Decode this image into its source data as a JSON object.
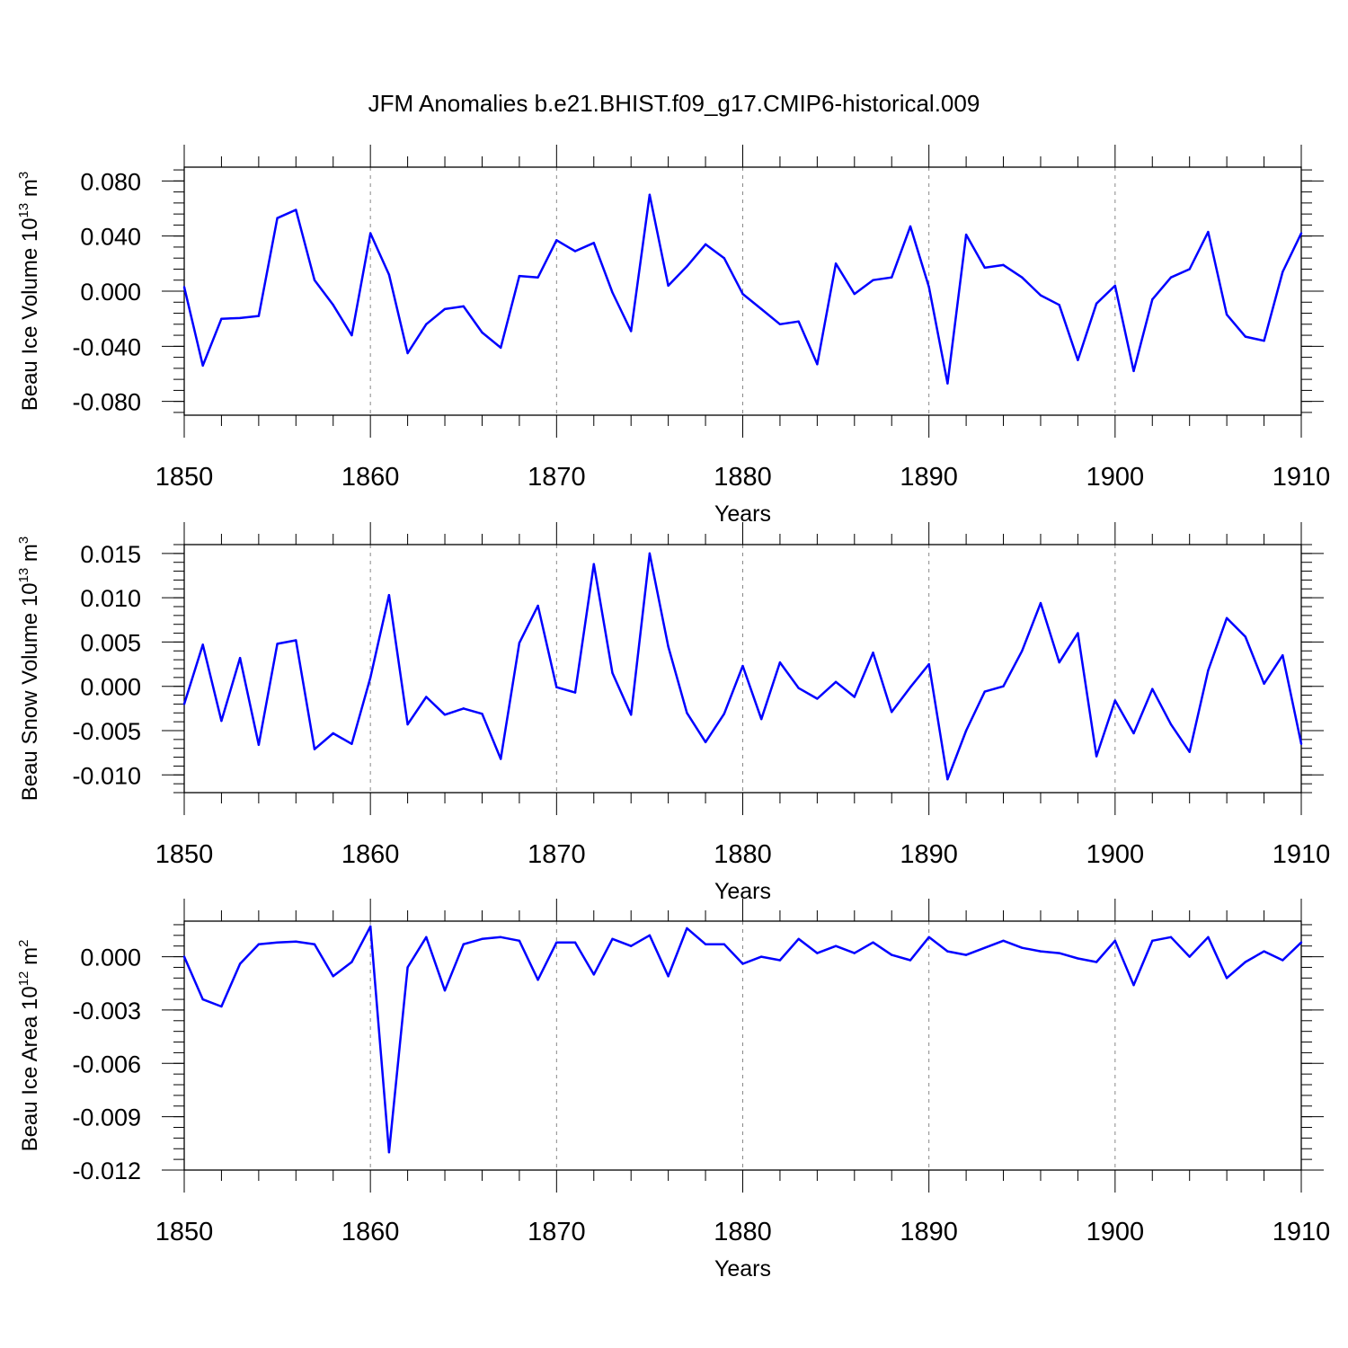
{
  "figure_title": "JFM Anomalies b.e21.BHIST.f09_g17.CMIP6-historical.009",
  "chart_data": [
    {
      "type": "line",
      "name": "ice-volume",
      "ylabel": "Beau Ice Volume 10",
      "ylabel_exp": "13",
      "ylabel_unit": " m",
      "ylabel_unit_exp": "3",
      "xlabel": "Years",
      "xlim": [
        1850,
        1910
      ],
      "ylim": [
        -0.09,
        0.09
      ],
      "x_ticks": [
        1850,
        1860,
        1870,
        1880,
        1890,
        1900,
        1910
      ],
      "x_tick_labels": [
        "1850",
        "1860",
        "1870",
        "1880",
        "1890",
        "1900",
        "1910"
      ],
      "y_ticks": [
        0.08,
        0.04,
        0.0,
        -0.04,
        -0.08
      ],
      "y_tick_labels": [
        "0.080",
        "0.040",
        "0.000",
        "-0.040",
        "-0.080"
      ],
      "y_minor_step": 0.008,
      "series_color": "#0000ff",
      "x": [
        1850,
        1851,
        1852,
        1853,
        1854,
        1855,
        1856,
        1857,
        1858,
        1859,
        1860,
        1861,
        1862,
        1863,
        1864,
        1865,
        1866,
        1867,
        1868,
        1869,
        1870,
        1871,
        1872,
        1873,
        1874,
        1875,
        1876,
        1877,
        1878,
        1879,
        1880,
        1881,
        1882,
        1883,
        1884,
        1885,
        1886,
        1887,
        1888,
        1889,
        1890,
        1891,
        1892,
        1893,
        1894,
        1895,
        1896,
        1897,
        1898,
        1899,
        1900,
        1901,
        1902,
        1903,
        1904,
        1905,
        1906,
        1907,
        1908,
        1909,
        1910
      ],
      "values": [
        0.003,
        -0.054,
        -0.02,
        -0.0195,
        -0.018,
        0.053,
        0.059,
        0.008,
        -0.01,
        -0.032,
        0.042,
        0.012,
        -0.045,
        -0.024,
        -0.013,
        -0.011,
        -0.03,
        -0.041,
        0.011,
        0.01,
        0.037,
        0.029,
        0.035,
        -0.001,
        -0.029,
        0.07,
        0.004,
        0.018,
        0.034,
        0.024,
        -0.002,
        -0.013,
        -0.024,
        -0.022,
        -0.053,
        0.02,
        -0.002,
        0.008,
        0.01,
        0.047,
        0.003,
        -0.067,
        0.041,
        0.017,
        0.019,
        0.01,
        -0.003,
        -0.01,
        -0.05,
        -0.009,
        0.004,
        -0.058,
        -0.006,
        0.01,
        0.016,
        0.043,
        -0.017,
        -0.033,
        -0.036,
        0.014,
        0.042
      ]
    },
    {
      "type": "line",
      "name": "snow-volume",
      "ylabel": "Beau Snow Volume 10",
      "ylabel_exp": "13",
      "ylabel_unit": " m",
      "ylabel_unit_exp": "3",
      "xlabel": "Years",
      "xlim": [
        1850,
        1910
      ],
      "ylim": [
        -0.012,
        0.016
      ],
      "x_ticks": [
        1850,
        1860,
        1870,
        1880,
        1890,
        1900,
        1910
      ],
      "x_tick_labels": [
        "1850",
        "1860",
        "1870",
        "1880",
        "1890",
        "1900",
        "1910"
      ],
      "y_ticks": [
        0.015,
        0.01,
        0.005,
        0.0,
        -0.005,
        -0.01
      ],
      "y_tick_labels": [
        "0.015",
        "0.010",
        "0.005",
        "0.000",
        "-0.005",
        "-0.010"
      ],
      "y_minor_step": 0.001,
      "series_color": "#0000ff",
      "x": [
        1850,
        1851,
        1852,
        1853,
        1854,
        1855,
        1856,
        1857,
        1858,
        1859,
        1860,
        1861,
        1862,
        1863,
        1864,
        1865,
        1866,
        1867,
        1868,
        1869,
        1870,
        1871,
        1872,
        1873,
        1874,
        1875,
        1876,
        1877,
        1878,
        1879,
        1880,
        1881,
        1882,
        1883,
        1884,
        1885,
        1886,
        1887,
        1888,
        1889,
        1890,
        1891,
        1892,
        1893,
        1894,
        1895,
        1896,
        1897,
        1898,
        1899,
        1900,
        1901,
        1902,
        1903,
        1904,
        1905,
        1906,
        1907,
        1908,
        1909,
        1910
      ],
      "values": [
        -0.002,
        0.0047,
        -0.0039,
        0.0032,
        -0.0066,
        0.0048,
        0.0052,
        -0.0071,
        -0.0053,
        -0.0065,
        0.001,
        0.0103,
        -0.0043,
        -0.0012,
        -0.0032,
        -0.0025,
        -0.0031,
        -0.0082,
        0.0049,
        0.0091,
        -0.0001,
        -0.0007,
        0.0138,
        0.0015,
        -0.0032,
        0.015,
        0.0045,
        -0.003,
        -0.0063,
        -0.0031,
        0.0023,
        -0.0037,
        0.0027,
        -0.0002,
        -0.0014,
        0.0005,
        -0.0012,
        0.0038,
        -0.0029,
        -0.0001,
        0.0025,
        -0.0105,
        -0.005,
        -0.0006,
        0.0,
        0.004,
        0.0094,
        0.0027,
        0.006,
        -0.0079,
        -0.0016,
        -0.0053,
        -0.0003,
        -0.0043,
        -0.0074,
        0.0018,
        0.0077,
        0.0056,
        0.0003,
        0.0035,
        -0.0065
      ]
    },
    {
      "type": "line",
      "name": "ice-area",
      "ylabel": "Beau Ice Area 10",
      "ylabel_exp": "12",
      "ylabel_unit": " m",
      "ylabel_unit_exp": "2",
      "xlabel": "Years",
      "xlim": [
        1850,
        1910
      ],
      "ylim": [
        -0.012,
        0.002
      ],
      "x_ticks": [
        1850,
        1860,
        1870,
        1880,
        1890,
        1900,
        1910
      ],
      "x_tick_labels": [
        "1850",
        "1860",
        "1870",
        "1880",
        "1890",
        "1900",
        "1910"
      ],
      "y_ticks": [
        0.0,
        -0.003,
        -0.006,
        -0.009,
        -0.012
      ],
      "y_tick_labels": [
        "0.000",
        "-0.003",
        "-0.006",
        "-0.009",
        "-0.012"
      ],
      "y_minor_step": 0.0006,
      "series_color": "#0000ff",
      "x": [
        1850,
        1851,
        1852,
        1853,
        1854,
        1855,
        1856,
        1857,
        1858,
        1859,
        1860,
        1861,
        1862,
        1863,
        1864,
        1865,
        1866,
        1867,
        1868,
        1869,
        1870,
        1871,
        1872,
        1873,
        1874,
        1875,
        1876,
        1877,
        1878,
        1879,
        1880,
        1881,
        1882,
        1883,
        1884,
        1885,
        1886,
        1887,
        1888,
        1889,
        1890,
        1891,
        1892,
        1893,
        1894,
        1895,
        1896,
        1897,
        1898,
        1899,
        1900,
        1901,
        1902,
        1903,
        1904,
        1905,
        1906,
        1907,
        1908,
        1909,
        1910
      ],
      "values": [
        0.0,
        -0.0024,
        -0.0028,
        -0.0004,
        0.0007,
        0.0008,
        0.00085,
        0.0007,
        -0.0011,
        -0.0003,
        0.0017,
        -0.011,
        -0.0006,
        0.0011,
        -0.0019,
        0.0007,
        0.001,
        0.0011,
        0.0009,
        -0.0013,
        0.0008,
        0.0008,
        -0.001,
        0.001,
        0.0006,
        0.0012,
        -0.0011,
        0.0016,
        0.0007,
        0.0007,
        -0.0004,
        0.0,
        -0.0002,
        0.001,
        0.0002,
        0.0006,
        0.0002,
        0.0008,
        0.0001,
        -0.0002,
        0.0011,
        0.0003,
        0.0001,
        0.0005,
        0.0009,
        0.0005,
        0.0003,
        0.0002,
        -0.0001,
        -0.0003,
        0.0009,
        -0.0016,
        0.0009,
        0.0011,
        0.0,
        0.0011,
        -0.0012,
        -0.0003,
        0.0003,
        -0.0002,
        0.0008
      ]
    }
  ]
}
